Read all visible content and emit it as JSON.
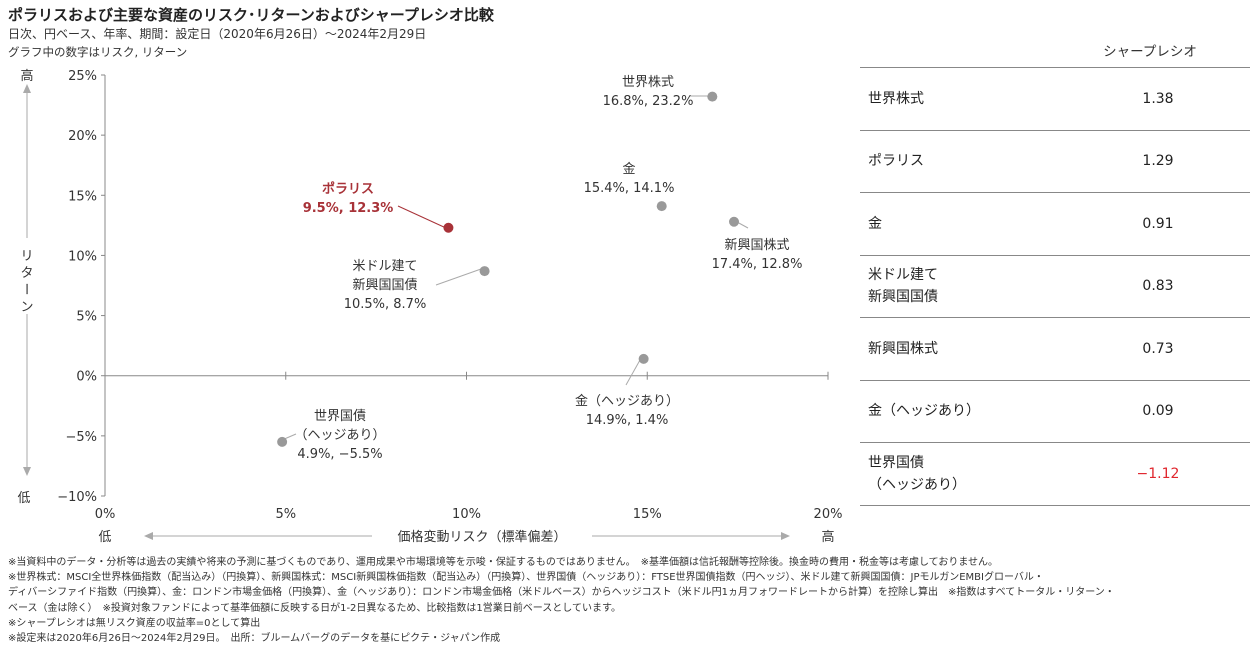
{
  "header": {
    "title": "ポラリスおよび主要な資産のリスク･リターンおよびシャープレシオ比較",
    "subtitle1": "日次、円ベース、年率、期間：設定日（2020年6月26日）～2024年2月29日",
    "subtitle2": "グラフ中の数字はリスク, リターン"
  },
  "chart_data": {
    "type": "scatter",
    "xlabel": "価格変動リスク（標準偏差）",
    "ylabel": "リターン",
    "x_low_label": "低",
    "x_high_label": "高",
    "y_high_label": "高",
    "y_low_label": "低",
    "xlim": [
      0,
      20
    ],
    "ylim": [
      -10,
      25
    ],
    "x_ticks": [
      "0%",
      "5%",
      "10%",
      "15%",
      "20%"
    ],
    "y_ticks": [
      "25%",
      "20%",
      "15%",
      "10%",
      "5%",
      "0%",
      "−5%",
      "−10%"
    ],
    "grid": false,
    "points": [
      {
        "name": "世界株式",
        "value_label": "16.8%, 23.2%",
        "x": 16.8,
        "y": 23.2,
        "color": "#999999"
      },
      {
        "name": "金",
        "value_label": "15.4%, 14.1%",
        "x": 15.4,
        "y": 14.1,
        "color": "#999999"
      },
      {
        "name": "ポラリス",
        "value_label": "9.5%, 12.3%",
        "x": 9.5,
        "y": 12.3,
        "color": "#a83238"
      },
      {
        "name": "新興国株式",
        "value_label": "17.4%, 12.8%",
        "x": 17.4,
        "y": 12.8,
        "color": "#999999"
      },
      {
        "name": "米ドル建て\n新興国国債",
        "value_label": "10.5%, 8.7%",
        "x": 10.5,
        "y": 8.7,
        "color": "#999999"
      },
      {
        "name": "金（ヘッジあり）",
        "value_label": "14.9%, 1.4%",
        "x": 14.9,
        "y": 1.4,
        "color": "#999999"
      },
      {
        "name": "世界国債\n（ヘッジあり）",
        "value_label": "4.9%, −5.5%",
        "x": 4.9,
        "y": -5.5,
        "color": "#999999"
      }
    ]
  },
  "sharpe": {
    "header": "シャープレシオ",
    "rows": [
      {
        "name": "世界株式",
        "value": "1.38",
        "negative": false
      },
      {
        "name": "ポラリス",
        "value": "1.29",
        "negative": false
      },
      {
        "name": "金",
        "value": "0.91",
        "negative": false
      },
      {
        "name": "米ドル建て\n新興国国債",
        "value": "0.83",
        "negative": false
      },
      {
        "name": "新興国株式",
        "value": "0.73",
        "negative": false
      },
      {
        "name": "金（ヘッジあり）",
        "value": "0.09",
        "negative": false
      },
      {
        "name": "世界国債\n（ヘッジあり）",
        "value": "−1.12",
        "negative": true
      }
    ]
  },
  "notes": [
    "※当資料中のデータ・分析等は過去の実績や将来の予測に基づくものであり、運用成果や市場環境等を示唆・保証するものではありません。　※基準価額は信託報酬等控除後。換金時の費用・税金等は考慮しておりません。",
    "※世界株式：MSCI全世界株価指数（配当込み）（円換算）、新興国株式：MSCI新興国株価指数（配当込み）（円換算）、世界国債（ヘッジあり）：FTSE世界国債指数（円ヘッジ）、米ドル建て新興国国債：JPモルガンEMBIグローバル・",
    "ディバーシファイド指数（円換算）、金：ロンドン市場金価格（円換算）、金（ヘッジあり）：ロンドン市場金価格（米ドルベース）からヘッジコスト（米ドル円1ヵ月フォワードレートから計算）を控除し算出　※指数はすべてトータル・リターン・",
    "ベース（金は除く）　※投資対象ファンドによって基準価額に反映する日が1-2日異なるため、比較指数は1営業日前ベースとしています。",
    "※シャープレシオは無リスク資産の収益率=0として算出",
    "※設定来は2020年6月26日～2024年2月29日。　出所：ブルームバーグのデータを基にピクテ・ジャパン作成"
  ]
}
